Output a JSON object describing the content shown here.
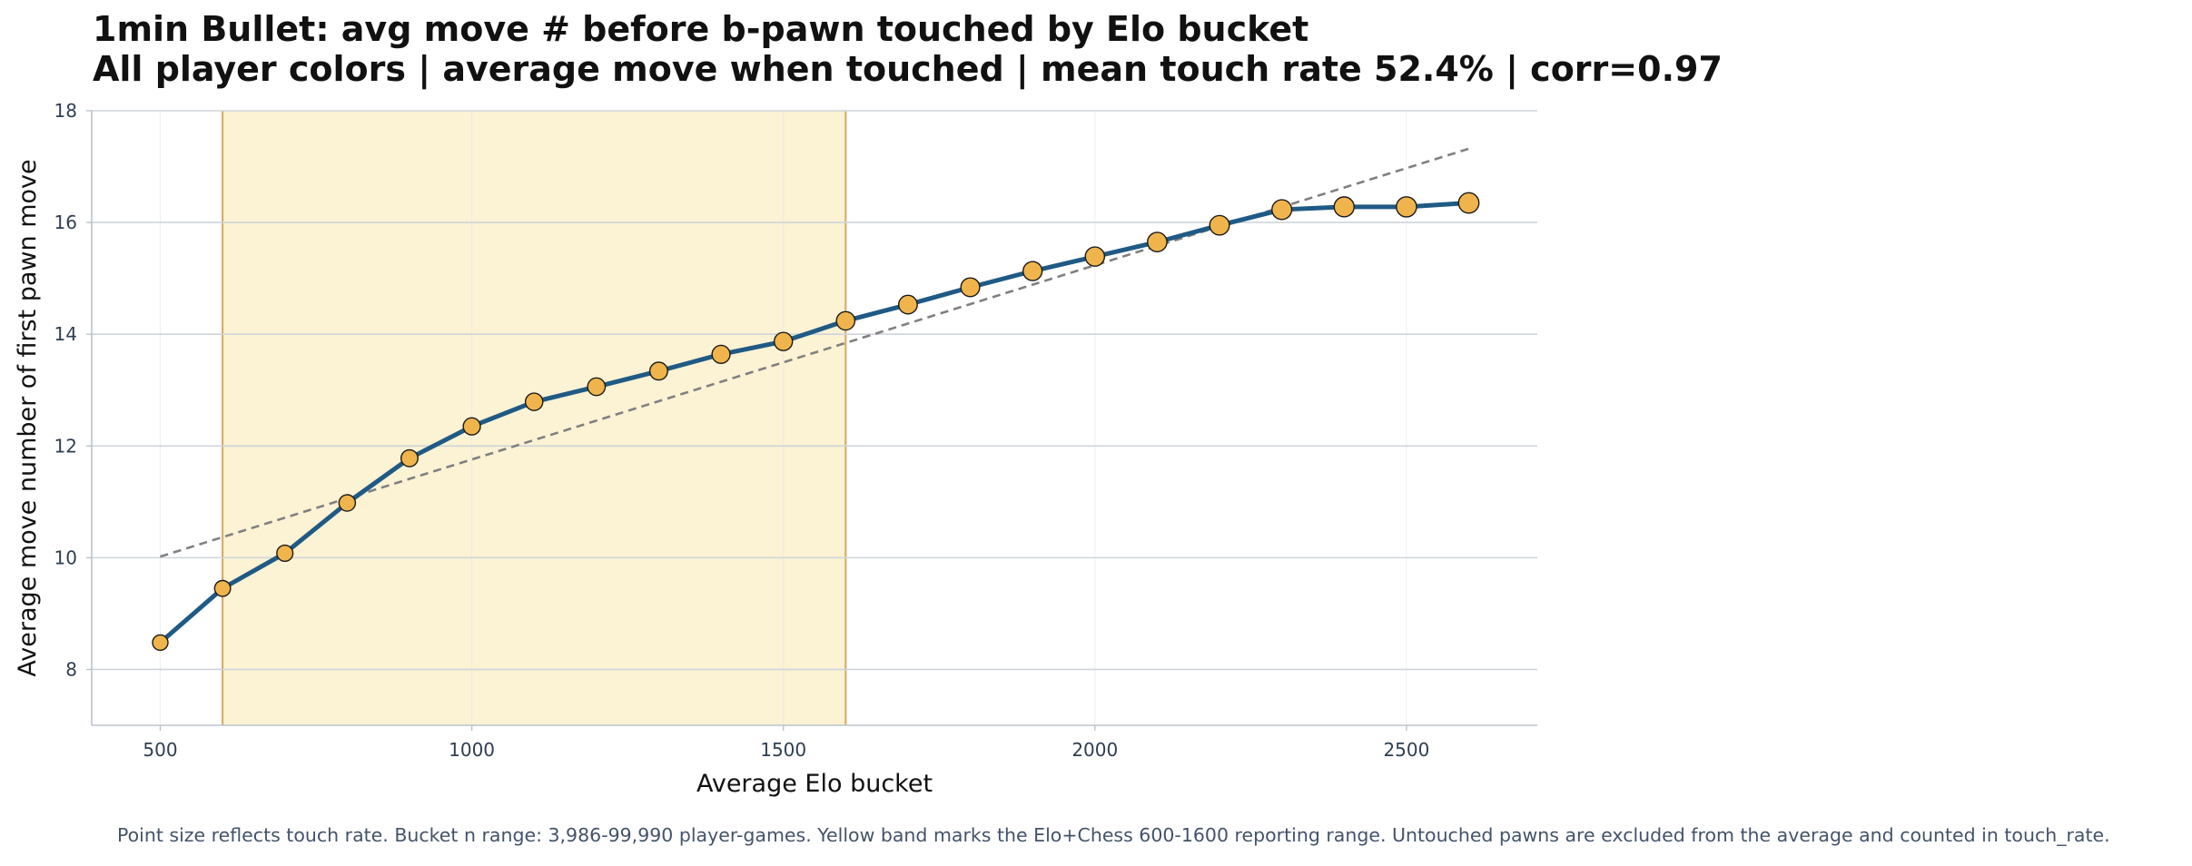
{
  "chart_data": {
    "type": "line",
    "title": "1min Bullet: avg move # before b-pawn touched by Elo bucket",
    "subtitle": "All player colors | average move when touched | mean touch rate 52.4% | corr=0.97",
    "xlabel": "Average Elo bucket",
    "ylabel": "Average move number of first pawn move",
    "xlim": [
      390,
      2710
    ],
    "ylim": [
      7,
      18
    ],
    "x_ticks": [
      500,
      1000,
      1500,
      2000,
      2500
    ],
    "y_ticks": [
      8,
      10,
      12,
      14,
      16,
      18
    ],
    "grid": true,
    "legend": "none",
    "x": [
      500,
      600,
      700,
      800,
      900,
      1000,
      1100,
      1200,
      1300,
      1400,
      1500,
      1600,
      1700,
      1800,
      1900,
      2000,
      2100,
      2200,
      2300,
      2400,
      2500,
      2600
    ],
    "series": [
      {
        "values": [
          8.48,
          9.45,
          10.08,
          10.98,
          11.78,
          12.35,
          12.79,
          13.06,
          13.34,
          13.64,
          13.87,
          14.24,
          14.53,
          14.84,
          15.13,
          15.39,
          15.65,
          15.95,
          16.23,
          16.28,
          16.28,
          16.35
        ],
        "color": "#1f5a85",
        "marker_color": "#f0b44c",
        "marker_sizes": [
          0.38,
          0.42,
          0.45,
          0.48,
          0.52,
          0.55,
          0.58,
          0.6,
          0.62,
          0.64,
          0.66,
          0.68,
          0.7,
          0.72,
          0.74,
          0.76,
          0.78,
          0.8,
          0.82,
          0.84,
          0.86,
          0.88
        ]
      }
    ],
    "trend_line": {
      "x": [
        500,
        2600
      ],
      "values": [
        10.02,
        17.32
      ],
      "style": "dashed",
      "color": "#808080"
    },
    "shaded_band": {
      "x_range": [
        600,
        1600
      ],
      "fill": "#fcf2d4",
      "edge": "#d8a85e"
    }
  },
  "footnote": "Point size reflects touch rate. Bucket n range: 3,986-99,990 player-games. Yellow band marks the Elo+Chess 600-1600 reporting range. Untouched pawns are excluded from the average and counted in touch_rate."
}
